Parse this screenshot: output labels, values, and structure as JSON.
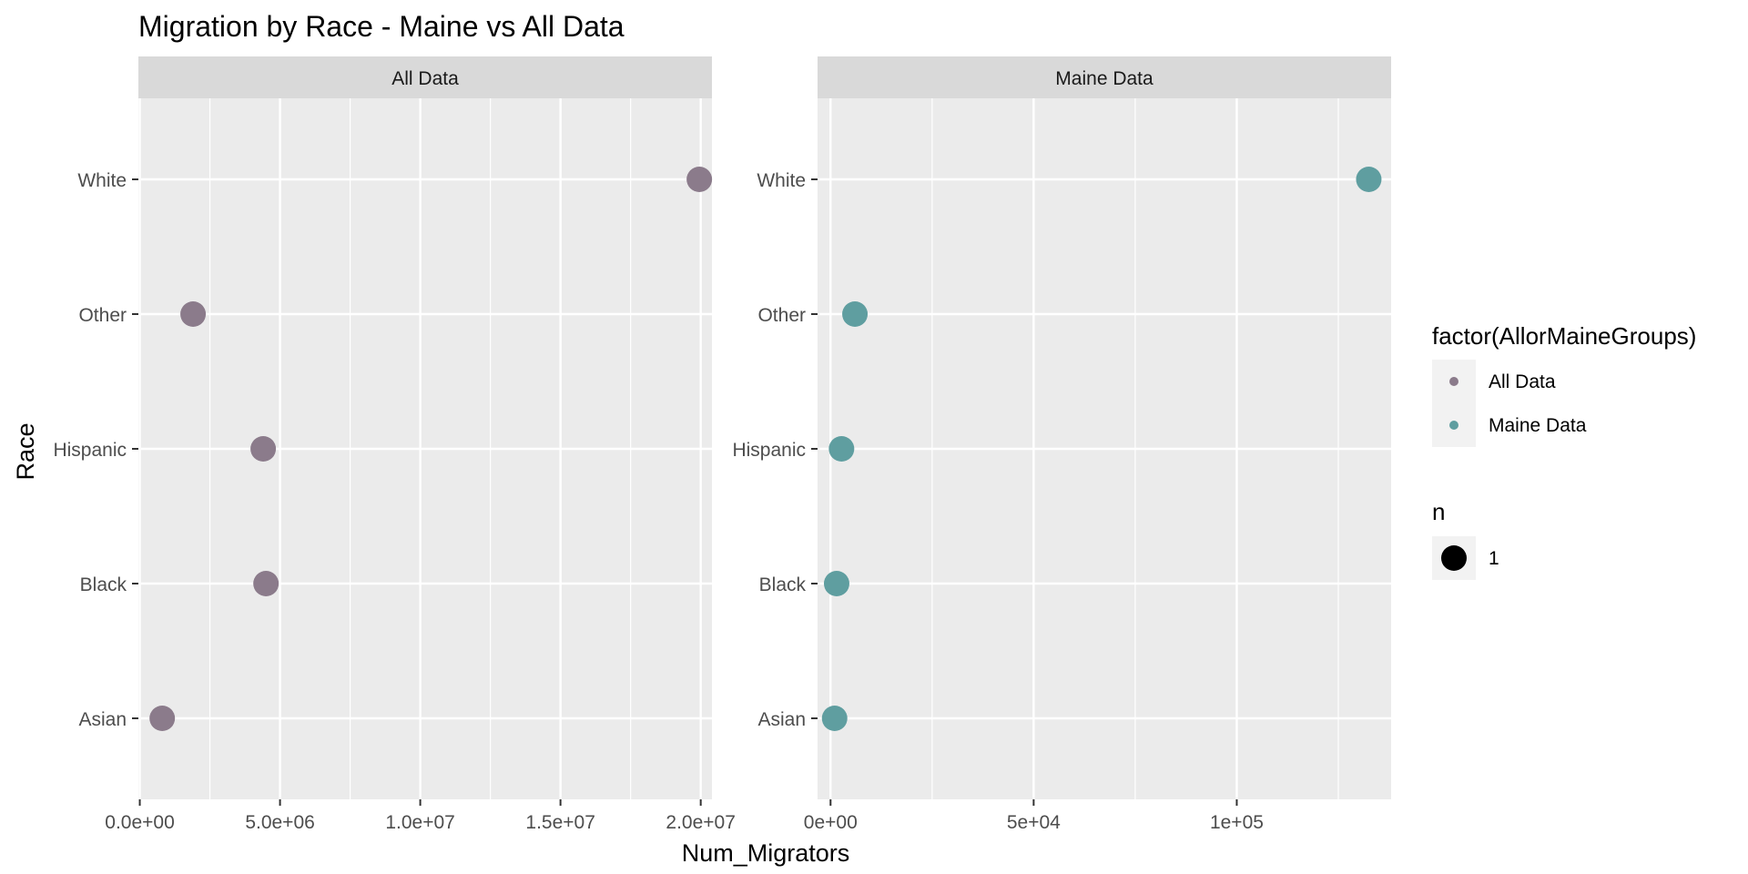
{
  "chart_data": {
    "type": "scatter",
    "title": "Migration by Race - Maine vs All Data",
    "xlabel": "Num_Migrators",
    "ylabel": "Race",
    "categories": [
      "Asian",
      "Black",
      "Hispanic",
      "Other",
      "White"
    ],
    "grid": true,
    "legend_position": "right",
    "panels": [
      {
        "strip": "All Data",
        "series": "All Data",
        "xlim": [
          -50000,
          20400000
        ],
        "x_ticks": [
          0,
          5000000,
          10000000,
          15000000,
          20000000
        ],
        "x_tick_labels": [
          "0.0e+00",
          "5.0e+06",
          "1.0e+07",
          "1.5e+07",
          "2.0e+07"
        ],
        "points": [
          {
            "race": "White",
            "x": 19950000
          },
          {
            "race": "Other",
            "x": 1900000
          },
          {
            "race": "Hispanic",
            "x": 4400000
          },
          {
            "race": "Black",
            "x": 4500000
          },
          {
            "race": "Asian",
            "x": 800000
          }
        ]
      },
      {
        "strip": "Maine Data",
        "series": "Maine Data",
        "xlim": [
          -3200,
          138000
        ],
        "x_ticks": [
          0,
          50000,
          100000
        ],
        "x_tick_labels": [
          "0e+00",
          "5e+04",
          "1e+05"
        ],
        "points": [
          {
            "race": "White",
            "x": 132500
          },
          {
            "race": "Other",
            "x": 6000
          },
          {
            "race": "Hispanic",
            "x": 2700
          },
          {
            "race": "Black",
            "x": 1500
          },
          {
            "race": "Asian",
            "x": 1000
          }
        ]
      }
    ],
    "legends": [
      {
        "title": "factor(AllorMaineGroups)",
        "entries": [
          {
            "label": "All Data",
            "color": "#8B7B8B"
          },
          {
            "label": "Maine Data",
            "color": "#5F9EA0"
          }
        ]
      },
      {
        "title": "n",
        "entries": [
          {
            "label": "1",
            "color": "#000000"
          }
        ]
      }
    ],
    "colors": {
      "All Data": "#8B7B8B",
      "Maine Data": "#5F9EA0",
      "panel_background": "#EBEBEB",
      "strip_background": "#D9D9D9",
      "grid": "#FFFFFF"
    }
  }
}
